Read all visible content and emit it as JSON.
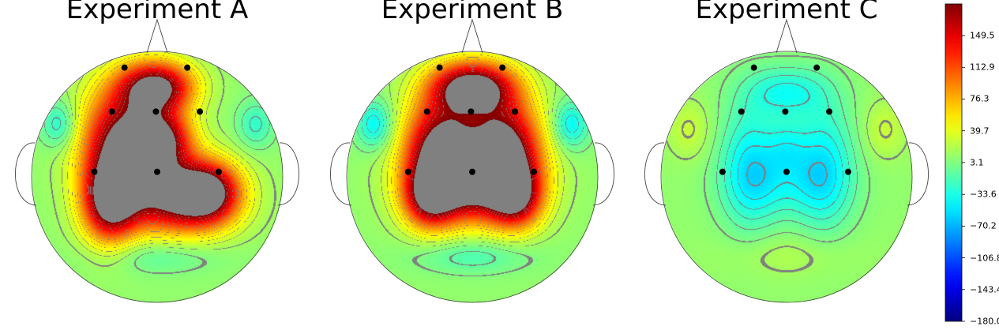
{
  "chart_data": {
    "type": "heatmap",
    "panels": [
      {
        "title": "Experiment A",
        "electrodes": [
          "e1",
          "e2",
          "e3",
          "e4",
          "e5",
          "e6",
          "e7",
          "e8",
          "e9",
          "e10"
        ],
        "field": [
          {
            "u": 0.0,
            "v": -0.72,
            "a": 185,
            "sx": 0.2,
            "sy": 0.14
          },
          {
            "u": -0.28,
            "v": -0.25,
            "a": 195,
            "sx": 0.22,
            "sy": 0.32
          },
          {
            "u": -0.38,
            "v": 0.2,
            "a": 170,
            "sx": 0.15,
            "sy": 0.22
          },
          {
            "u": 0.18,
            "v": 0.15,
            "a": 195,
            "sx": 0.28,
            "sy": 0.2
          },
          {
            "u": 0.05,
            "v": -0.3,
            "a": 150,
            "sx": 0.16,
            "sy": 0.16
          },
          {
            "u": 0.42,
            "v": 0.12,
            "a": 120,
            "sx": 0.16,
            "sy": 0.16
          },
          {
            "u": -0.78,
            "v": -0.42,
            "a": -45,
            "sx": 0.1,
            "sy": 0.13
          },
          {
            "u": 0.78,
            "v": -0.42,
            "a": -35,
            "sx": 0.1,
            "sy": 0.13
          },
          {
            "u": 0.0,
            "v": 0.62,
            "a": -25,
            "sx": 0.34,
            "sy": 0.1
          }
        ]
      },
      {
        "title": "Experiment B",
        "electrodes": [
          "e1",
          "e2",
          "e3",
          "e4",
          "e5",
          "e6",
          "e7",
          "e8",
          "e9",
          "e10"
        ],
        "field": [
          {
            "u": 0.0,
            "v": -0.72,
            "a": 195,
            "sx": 0.22,
            "sy": 0.14
          },
          {
            "u": -0.25,
            "v": -0.2,
            "a": 205,
            "sx": 0.2,
            "sy": 0.3
          },
          {
            "u": 0.25,
            "v": -0.2,
            "a": 205,
            "sx": 0.2,
            "sy": 0.3
          },
          {
            "u": 0.0,
            "v": 0.05,
            "a": 140,
            "sx": 0.3,
            "sy": 0.2
          },
          {
            "u": -0.35,
            "v": 0.18,
            "a": 110,
            "sx": 0.14,
            "sy": 0.16
          },
          {
            "u": 0.35,
            "v": 0.18,
            "a": 110,
            "sx": 0.14,
            "sy": 0.16
          },
          {
            "u": -0.78,
            "v": -0.42,
            "a": -55,
            "sx": 0.1,
            "sy": 0.13
          },
          {
            "u": 0.78,
            "v": -0.42,
            "a": -55,
            "sx": 0.1,
            "sy": 0.13
          },
          {
            "u": 0.0,
            "v": 0.62,
            "a": -30,
            "sx": 0.32,
            "sy": 0.1
          }
        ]
      },
      {
        "title": "Experiment C",
        "electrodes": [
          "e1",
          "e2",
          "e3",
          "e4",
          "e5",
          "e6",
          "e7",
          "e8",
          "e9",
          "e10"
        ],
        "field": [
          {
            "u": 0.0,
            "v": -0.68,
            "a": -45,
            "sx": 0.22,
            "sy": 0.14
          },
          {
            "u": -0.3,
            "v": -0.1,
            "a": -50,
            "sx": 0.16,
            "sy": 0.35
          },
          {
            "u": 0.3,
            "v": -0.1,
            "a": -50,
            "sx": 0.16,
            "sy": 0.35
          },
          {
            "u": 0.0,
            "v": 0.05,
            "a": -35,
            "sx": 0.3,
            "sy": 0.2
          },
          {
            "u": 0.0,
            "v": -0.25,
            "a": -30,
            "sx": 0.12,
            "sy": 0.15
          },
          {
            "u": -0.78,
            "v": -0.38,
            "a": 20,
            "sx": 0.12,
            "sy": 0.16
          },
          {
            "u": 0.78,
            "v": -0.38,
            "a": 20,
            "sx": 0.12,
            "sy": 0.16
          },
          {
            "u": 0.0,
            "v": 0.62,
            "a": 12,
            "sx": 0.36,
            "sy": 0.12
          }
        ]
      }
    ],
    "baseline": 10,
    "colorbar": {
      "min": -180.0,
      "max": 186.0,
      "ticks": [
        "149.5",
        "112.9",
        "76.3",
        "39.7",
        "3.1",
        "−33.6",
        "−70.2",
        "−106.8",
        "−143.4",
        "−180.0"
      ],
      "tick_values": [
        149.5,
        112.9,
        76.3,
        39.7,
        3.1,
        -33.6,
        -70.2,
        -106.8,
        -143.4,
        -180.0
      ],
      "colormap": "jet"
    },
    "contour_step": 12.2,
    "contour_color": "#808080",
    "electrode_color": "#000000"
  }
}
